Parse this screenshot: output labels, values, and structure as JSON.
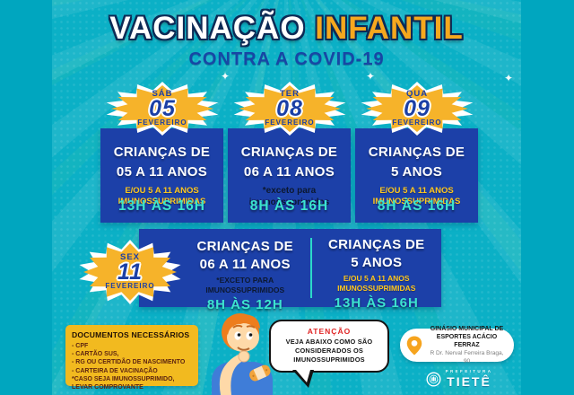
{
  "colors": {
    "background": "#0bb0c6",
    "side_fill": "#00a6bf",
    "card_blue": "#1c40a8",
    "badge_yellow": "#f6b32a",
    "title_yellow": "#f6a81e",
    "navy_blue": "#1747a5",
    "note_yellow": "#ffc71f",
    "time_teal": "#3ce4cf",
    "doc_box_yellow": "#f2ba1f",
    "attention_red": "#e02525",
    "pin_orange": "#f6a41e"
  },
  "header": {
    "title_part1": "VACINAÇÃO",
    "title_part2": "INFANTIL",
    "subtitle": "CONTRA A COVID-19"
  },
  "sessions": [
    {
      "day": "SÁB",
      "date": "05",
      "month": "FEVEREIRO",
      "title_line1": "CRIANÇAS DE",
      "title_line2": "05 A 11 ANOS",
      "note": "E/OU 5 A 11 ANOS IMUNOSSUPRIMIDAS",
      "time": "13H ÀS 16H"
    },
    {
      "day": "TER",
      "date": "08",
      "month": "FEVEREIRO",
      "title_line1": "CRIANÇAS DE",
      "title_line2": "06 A 11 ANOS",
      "note": "*exceto para imunossuprimidos",
      "time": "8H ÀS 16H"
    },
    {
      "day": "QUA",
      "date": "09",
      "month": "FEVEREIRO",
      "title_line1": "CRIANÇAS DE",
      "title_line2": "5 ANOS",
      "note": "E/OU 5 A 11 ANOS IMUNOSSUPRIMIDAS",
      "time": "8H ÀS 16H"
    }
  ],
  "session4": {
    "day": "SEX",
    "date": "11",
    "month": "FEVEREIRO",
    "left": {
      "title_line1": "CRIANÇAS DE",
      "title_line2": "06 A 11 ANOS",
      "note": "*EXCETO PARA IMUNOSSUPRIMIDOS",
      "time": "8H ÀS 12H"
    },
    "right": {
      "title_line1": "CRIANÇAS DE",
      "title_line2": "5 ANOS",
      "note": "E/OU 5 A 11 ANOS IMUNOSSUPRIMIDAS",
      "time": "13H ÀS 16H"
    }
  },
  "documents": {
    "title": "DOCUMENTOS NECESSÁRIOS",
    "items": [
      "- CPF",
      "- CARTÃO SUS,",
      "- RG OU CERTIDÃO DE NASCIMENTO",
      "- CARTEIRA DE VACINAÇÃO",
      "*CASO SEJA IMUNOSSUPRIMIDO, LEVAR COMPROVANTE"
    ]
  },
  "attention": {
    "title": "ATENÇÃO",
    "body": "VEJA ABAIXO COMO SÃO CONSIDERADOS OS IMUNOSSUPRIMIDOS"
  },
  "location": {
    "name_line1": "GINÁSIO MUNICIPAL DE",
    "name_line2": "ESPORTES ACÁCIO FERRAZ",
    "address": "R Dr. Nerval Ferreira Braga, 90"
  },
  "footer_logo": {
    "top_text": "PREFEITURA",
    "name": "TIETÊ"
  }
}
